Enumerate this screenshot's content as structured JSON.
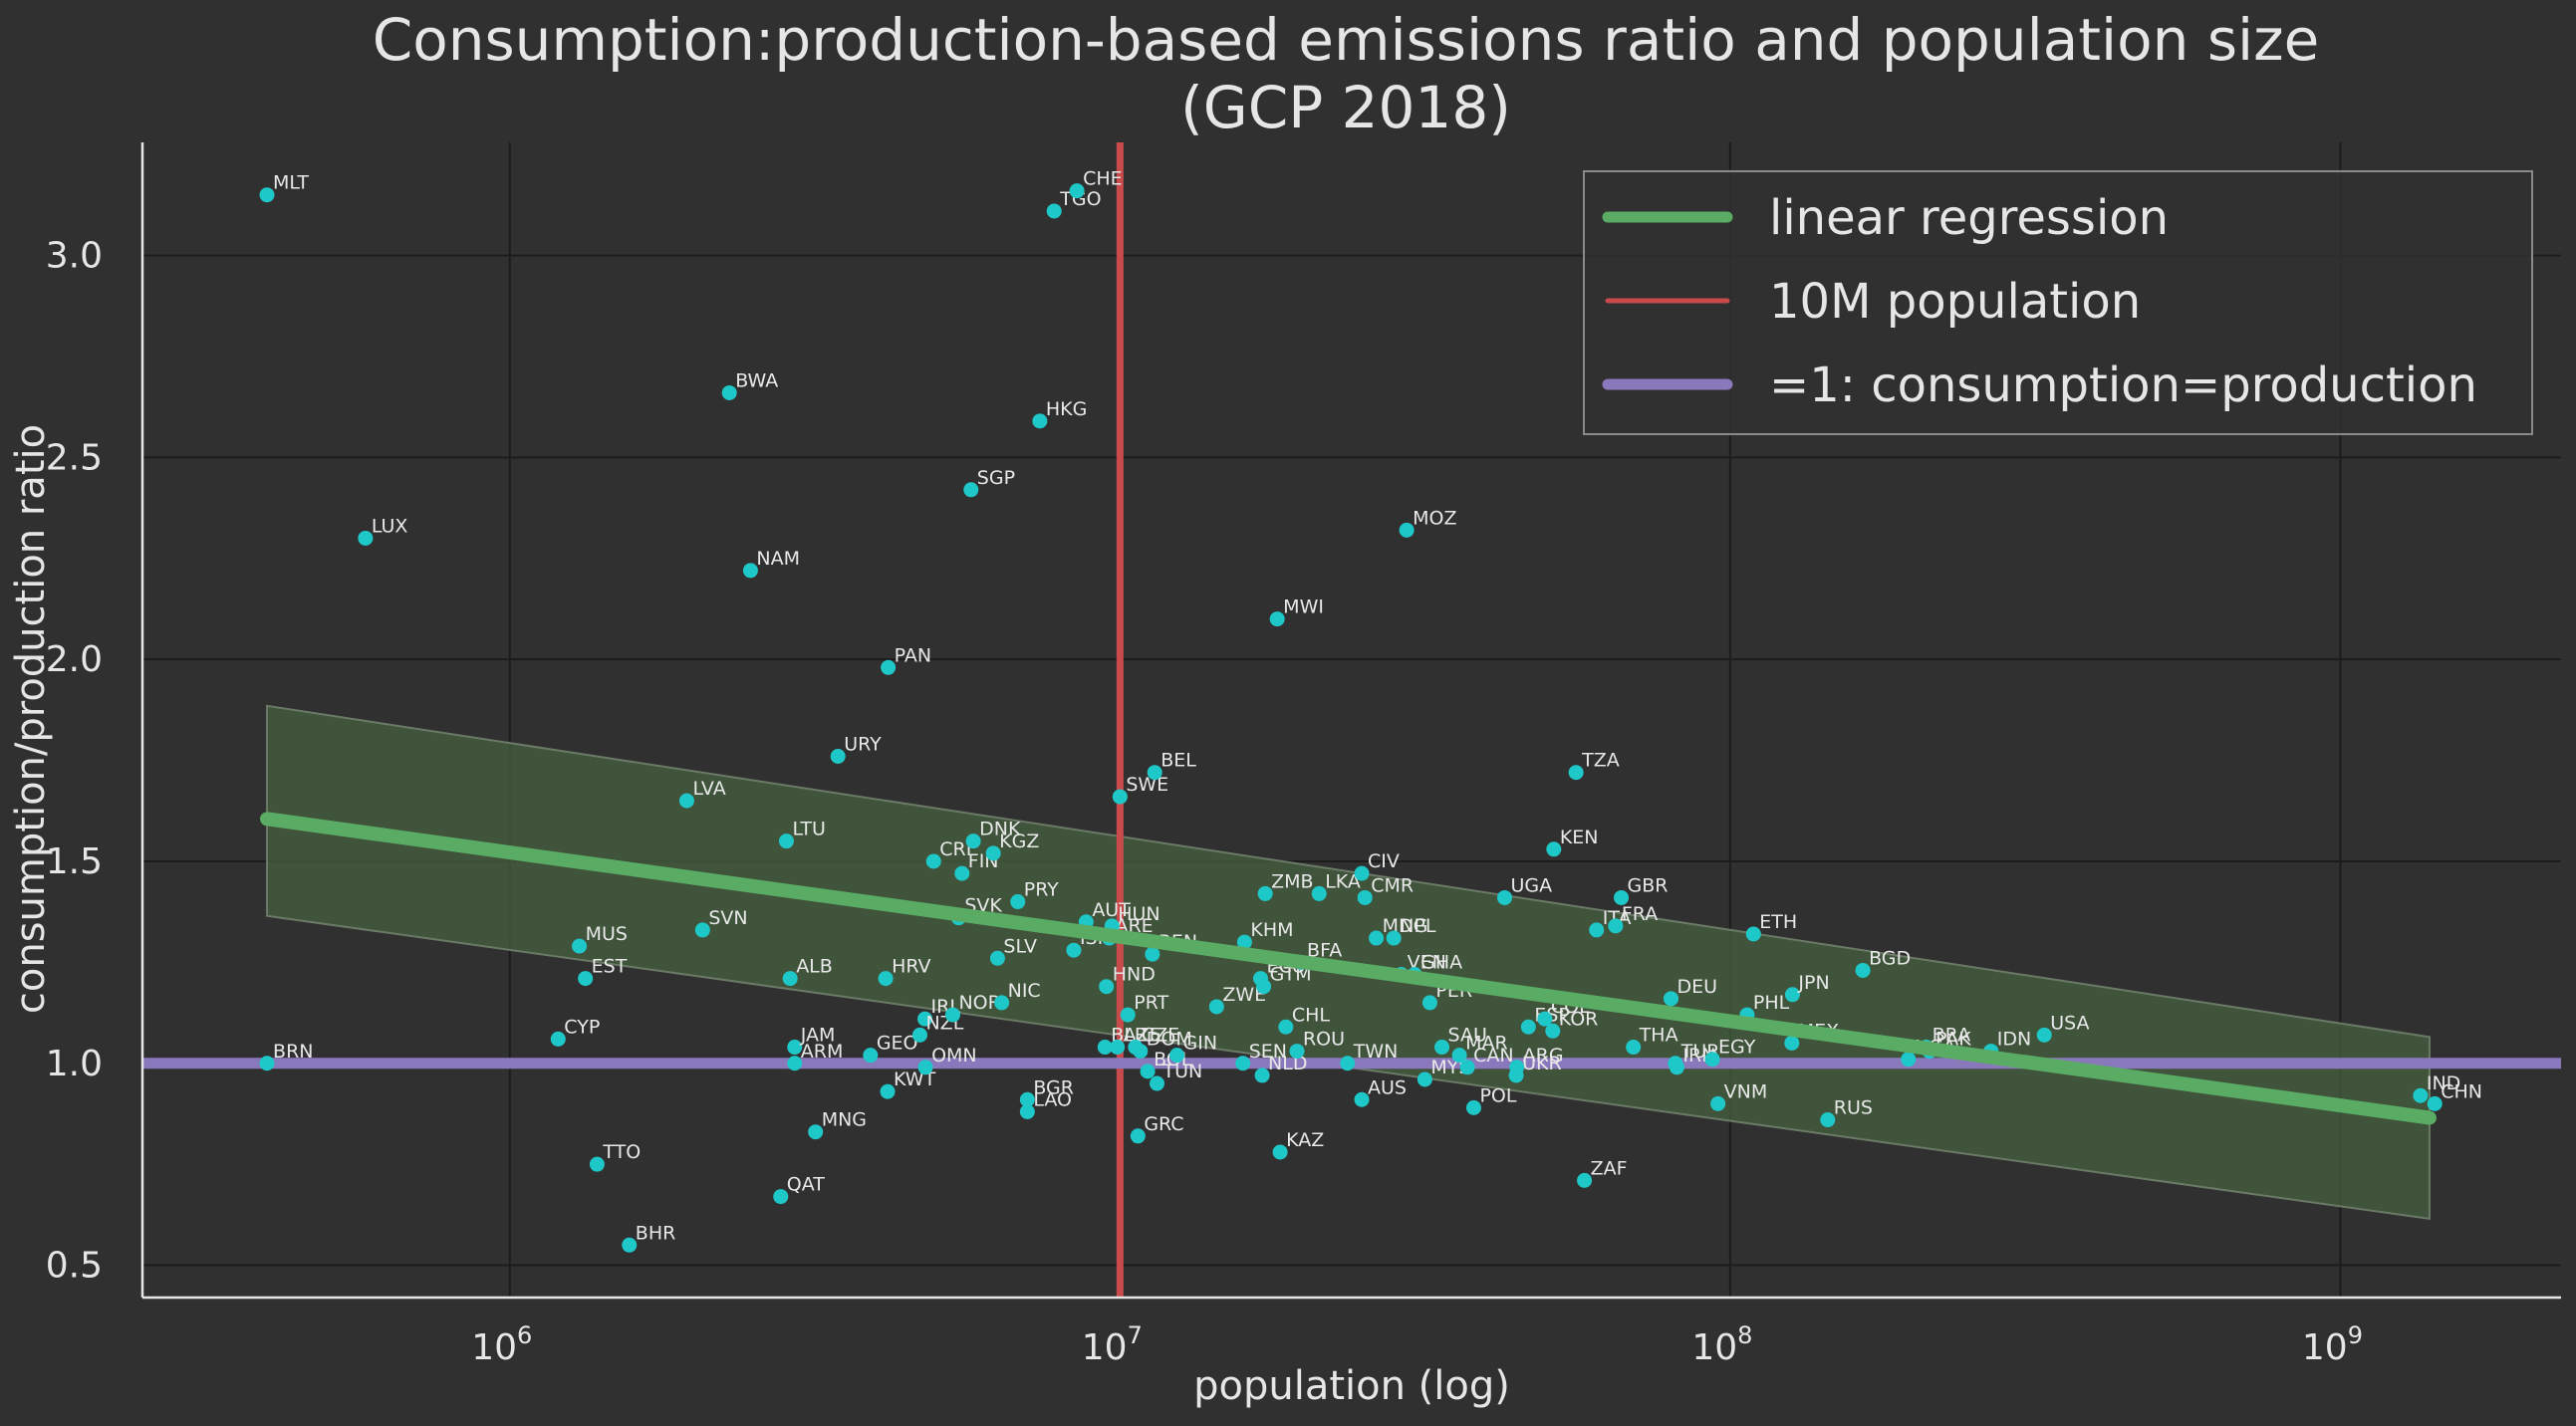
{
  "chart_data": {
    "type": "scatter",
    "title_line1": "Consumption:production-based emissions ratio and population size",
    "title_line2": "(GCP 2018)",
    "xlabel": "population (log)",
    "ylabel": "consumption/production ratio",
    "x_scale": "log",
    "xlim": [
      250000,
      2300000000
    ],
    "ylim": [
      0.42,
      3.28
    ],
    "x_ticks": [
      {
        "value": 1000000,
        "base": "10",
        "exp": "6"
      },
      {
        "value": 10000000,
        "base": "10",
        "exp": "7"
      },
      {
        "value": 100000000,
        "base": "10",
        "exp": "8"
      },
      {
        "value": 1000000000,
        "base": "10",
        "exp": "9"
      }
    ],
    "y_ticks": [
      {
        "value": 0.5,
        "label": "0.5"
      },
      {
        "value": 1.0,
        "label": "1.0"
      },
      {
        "value": 1.5,
        "label": "1.5"
      },
      {
        "value": 2.0,
        "label": "2.0"
      },
      {
        "value": 2.5,
        "label": "2.5"
      },
      {
        "value": 3.0,
        "label": "3.0"
      }
    ],
    "grid": true,
    "colors": {
      "background": "#303030",
      "grid": "#1c1c1c",
      "axis": "#e6e6e6",
      "points": "#1fc8c8",
      "regression": "#5aac64",
      "band_fill": "#44603f",
      "population_line": "#c94a4a",
      "parity_line": "#8a78bd"
    },
    "regression": {
      "x_start": 400000,
      "y_start": 1.605,
      "x_end": 1400000000,
      "y_end": 0.865,
      "band_start": [
        1.365,
        1.885
      ],
      "band_end": [
        0.615,
        1.065
      ]
    },
    "reference_lines": {
      "population_x": 10000000,
      "parity_y": 1.0
    },
    "legend": {
      "position": "top-right",
      "entries": [
        {
          "label": "linear regression",
          "color": "#5aac64"
        },
        {
          "label": "10M  population",
          "color": "#c94a4a"
        },
        {
          "label": "=1: consumption=production",
          "color": "#8a78bd"
        }
      ]
    },
    "points": [
      {
        "label": "MLT",
        "x": 400000,
        "y": 3.15
      },
      {
        "label": "LUX",
        "x": 580000,
        "y": 2.3
      },
      {
        "label": "BRN",
        "x": 400000,
        "y": 1.0
      },
      {
        "label": "CYP",
        "x": 1200000,
        "y": 1.06
      },
      {
        "label": "MUS",
        "x": 1300000,
        "y": 1.29
      },
      {
        "label": "EST",
        "x": 1330000,
        "y": 1.21
      },
      {
        "label": "TTO",
        "x": 1390000,
        "y": 0.75
      },
      {
        "label": "BHR",
        "x": 1570000,
        "y": 0.55
      },
      {
        "label": "LVA",
        "x": 1950000,
        "y": 1.65
      },
      {
        "label": "SVN",
        "x": 2070000,
        "y": 1.33
      },
      {
        "label": "BWA",
        "x": 2290000,
        "y": 2.66
      },
      {
        "label": "NAM",
        "x": 2480000,
        "y": 2.22
      },
      {
        "label": "QAT",
        "x": 2780000,
        "y": 0.67
      },
      {
        "label": "LTU",
        "x": 2840000,
        "y": 1.55
      },
      {
        "label": "ALB",
        "x": 2880000,
        "y": 1.21
      },
      {
        "label": "JAM",
        "x": 2930000,
        "y": 1.04
      },
      {
        "label": "ARM",
        "x": 2930000,
        "y": 1.0
      },
      {
        "label": "MNG",
        "x": 3170000,
        "y": 0.83
      },
      {
        "label": "URY",
        "x": 3450000,
        "y": 1.76
      },
      {
        "label": "GEO",
        "x": 3900000,
        "y": 1.02
      },
      {
        "label": "PAN",
        "x": 4170000,
        "y": 1.98
      },
      {
        "label": "HRV",
        "x": 4130000,
        "y": 1.21
      },
      {
        "label": "KWT",
        "x": 4160000,
        "y": 0.93
      },
      {
        "label": "IRL",
        "x": 4790000,
        "y": 1.11
      },
      {
        "label": "NZL",
        "x": 4700000,
        "y": 1.07
      },
      {
        "label": "OMN",
        "x": 4800000,
        "y": 0.99
      },
      {
        "label": "CRI",
        "x": 4950000,
        "y": 1.5
      },
      {
        "label": "NOR",
        "x": 5320000,
        "y": 1.12
      },
      {
        "label": "SVK",
        "x": 5440000,
        "y": 1.36
      },
      {
        "label": "FIN",
        "x": 5510000,
        "y": 1.47
      },
      {
        "label": "SGP",
        "x": 5700000,
        "y": 2.42
      },
      {
        "label": "DNK",
        "x": 5750000,
        "y": 1.55
      },
      {
        "label": "SLV",
        "x": 6300000,
        "y": 1.26
      },
      {
        "label": "NIC",
        "x": 6400000,
        "y": 1.15
      },
      {
        "label": "KGZ",
        "x": 6200000,
        "y": 1.52
      },
      {
        "label": "PRY",
        "x": 6800000,
        "y": 1.4
      },
      {
        "label": "BGR",
        "x": 7050000,
        "y": 0.91
      },
      {
        "label": "LAO",
        "x": 7050000,
        "y": 0.88
      },
      {
        "label": "HKG",
        "x": 7390000,
        "y": 2.59
      },
      {
        "label": "TGO",
        "x": 7800000,
        "y": 3.11
      },
      {
        "label": "CHE",
        "x": 8500000,
        "y": 3.16
      },
      {
        "label": "ISR",
        "x": 8400000,
        "y": 1.28
      },
      {
        "label": "AUT",
        "x": 8800000,
        "y": 1.35
      },
      {
        "label": "HND",
        "x": 9500000,
        "y": 1.19
      },
      {
        "label": "ARE",
        "x": 9600000,
        "y": 1.31
      },
      {
        "label": "BLR",
        "x": 9450000,
        "y": 1.04
      },
      {
        "label": "AZE",
        "x": 9900000,
        "y": 1.04
      },
      {
        "label": "HUN",
        "x": 9700000,
        "y": 1.34
      },
      {
        "label": "SWE",
        "x": 10000000,
        "y": 1.66
      },
      {
        "label": "PRT",
        "x": 10300000,
        "y": 1.12
      },
      {
        "label": "CZE",
        "x": 10600000,
        "y": 1.04
      },
      {
        "label": "GRC",
        "x": 10700000,
        "y": 0.82
      },
      {
        "label": "DOM",
        "x": 10800000,
        "y": 1.03
      },
      {
        "label": "BOL",
        "x": 11100000,
        "y": 0.98
      },
      {
        "label": "BEN",
        "x": 11300000,
        "y": 1.27
      },
      {
        "label": "BEL",
        "x": 11400000,
        "y": 1.72
      },
      {
        "label": "TUN",
        "x": 11500000,
        "y": 0.95
      },
      {
        "label": "GIN",
        "x": 12400000,
        "y": 1.02
      },
      {
        "label": "ZWE",
        "x": 14400000,
        "y": 1.14
      },
      {
        "label": "SEN",
        "x": 15900000,
        "y": 1.0
      },
      {
        "label": "KHM",
        "x": 16000000,
        "y": 1.3
      },
      {
        "label": "NLD",
        "x": 17100000,
        "y": 0.97
      },
      {
        "label": "ECU",
        "x": 17000000,
        "y": 1.21
      },
      {
        "label": "GTM",
        "x": 17200000,
        "y": 1.19
      },
      {
        "label": "ZMB",
        "x": 17300000,
        "y": 1.42
      },
      {
        "label": "MWI",
        "x": 18100000,
        "y": 2.1
      },
      {
        "label": "KAZ",
        "x": 18300000,
        "y": 0.78
      },
      {
        "label": "CHL",
        "x": 18700000,
        "y": 1.09
      },
      {
        "label": "ROU",
        "x": 19500000,
        "y": 1.03
      },
      {
        "label": "LKA",
        "x": 21200000,
        "y": 1.42
      },
      {
        "label": "BFA",
        "x": 19800000,
        "y": 1.25
      },
      {
        "label": "TWN",
        "x": 23600000,
        "y": 1.0
      },
      {
        "label": "CIV",
        "x": 24900000,
        "y": 1.47
      },
      {
        "label": "CMR",
        "x": 25200000,
        "y": 1.41
      },
      {
        "label": "AUS",
        "x": 24900000,
        "y": 0.91
      },
      {
        "label": "MDG",
        "x": 26300000,
        "y": 1.31
      },
      {
        "label": "NPL",
        "x": 28100000,
        "y": 1.31
      },
      {
        "label": "VEN",
        "x": 28900000,
        "y": 1.22
      },
      {
        "label": "MOZ",
        "x": 29500000,
        "y": 2.32
      },
      {
        "label": "GHA",
        "x": 30400000,
        "y": 1.22
      },
      {
        "label": "MYS",
        "x": 31600000,
        "y": 0.96
      },
      {
        "label": "PER",
        "x": 32200000,
        "y": 1.15
      },
      {
        "label": "SAU",
        "x": 33700000,
        "y": 1.04
      },
      {
        "label": "MAR",
        "x": 36000000,
        "y": 1.02
      },
      {
        "label": "CAN",
        "x": 37100000,
        "y": 0.99
      },
      {
        "label": "POL",
        "x": 38000000,
        "y": 0.89
      },
      {
        "label": "UGA",
        "x": 42700000,
        "y": 1.41
      },
      {
        "label": "UKR",
        "x": 44600000,
        "y": 0.97
      },
      {
        "label": "ARG",
        "x": 44700000,
        "y": 0.99
      },
      {
        "label": "ESP",
        "x": 46700000,
        "y": 1.09
      },
      {
        "label": "COL",
        "x": 49700000,
        "y": 1.11
      },
      {
        "label": "KOR",
        "x": 51200000,
        "y": 1.08
      },
      {
        "label": "KEN",
        "x": 51400000,
        "y": 1.53
      },
      {
        "label": "TZA",
        "x": 55900000,
        "y": 1.72
      },
      {
        "label": "ZAF",
        "x": 57700000,
        "y": 0.71
      },
      {
        "label": "ITA",
        "x": 60400000,
        "y": 1.33
      },
      {
        "label": "FRA",
        "x": 64900000,
        "y": 1.34
      },
      {
        "label": "GBR",
        "x": 66300000,
        "y": 1.41
      },
      {
        "label": "THA",
        "x": 69400000,
        "y": 1.04
      },
      {
        "label": "DEU",
        "x": 80000000,
        "y": 1.16
      },
      {
        "label": "TUR",
        "x": 81300000,
        "y": 1.0
      },
      {
        "label": "IRN",
        "x": 81800000,
        "y": 0.99
      },
      {
        "label": "EGY",
        "x": 93500000,
        "y": 1.01
      },
      {
        "label": "VNM",
        "x": 95500000,
        "y": 0.9
      },
      {
        "label": "PHL",
        "x": 106600000,
        "y": 1.12
      },
      {
        "label": "ETH",
        "x": 109200000,
        "y": 1.32
      },
      {
        "label": "JPN",
        "x": 126500000,
        "y": 1.17
      },
      {
        "label": "MEX",
        "x": 126200000,
        "y": 1.05
      },
      {
        "label": "RUS",
        "x": 144500000,
        "y": 0.86
      },
      {
        "label": "BGD",
        "x": 165000000,
        "y": 1.23
      },
      {
        "label": "NGA",
        "x": 195900000,
        "y": 1.01
      },
      {
        "label": "PAK",
        "x": 212200000,
        "y": 1.03
      },
      {
        "label": "BRA",
        "x": 209500000,
        "y": 1.04
      },
      {
        "label": "IDN",
        "x": 267600000,
        "y": 1.03
      },
      {
        "label": "USA",
        "x": 327200000,
        "y": 1.07
      },
      {
        "label": "IND",
        "x": 1353000000,
        "y": 0.92
      },
      {
        "label": "CHN",
        "x": 1428000000,
        "y": 0.9
      }
    ]
  }
}
